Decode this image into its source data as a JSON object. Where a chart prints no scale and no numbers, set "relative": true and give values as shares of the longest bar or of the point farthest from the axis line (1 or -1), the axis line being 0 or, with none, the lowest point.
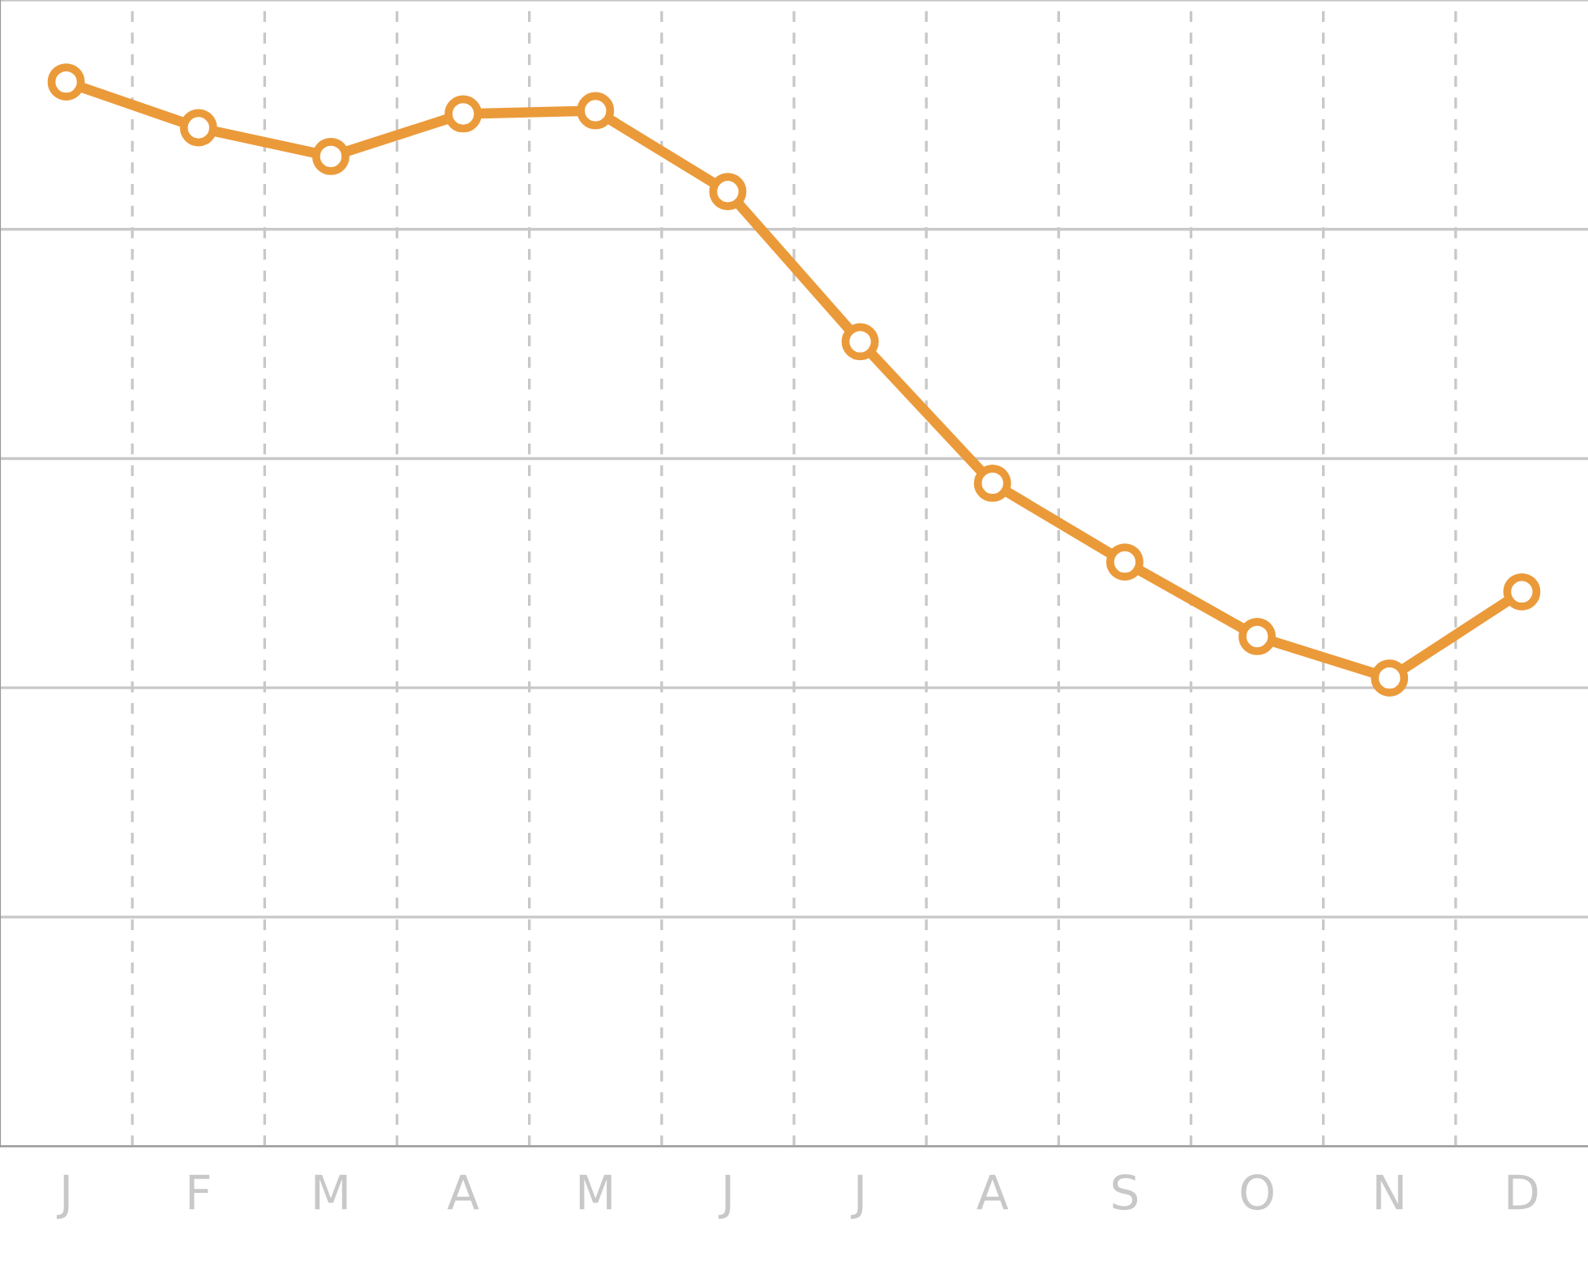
{
  "chart_data": {
    "type": "line",
    "relative": true,
    "categories": [
      "J",
      "F",
      "M",
      "A",
      "M",
      "J",
      "J",
      "A",
      "S",
      "O",
      "N",
      "D"
    ],
    "series": [
      {
        "color": "#eb9a3a",
        "values": [
          1,
          0.957,
          0.93,
          0.97,
          0.973,
          0.897,
          0.756,
          0.623,
          0.549,
          0.479,
          0.44,
          0.521
        ]
      }
    ],
    "marker": "circle",
    "line_style": "solid",
    "grid": true,
    "legend": false
  }
}
